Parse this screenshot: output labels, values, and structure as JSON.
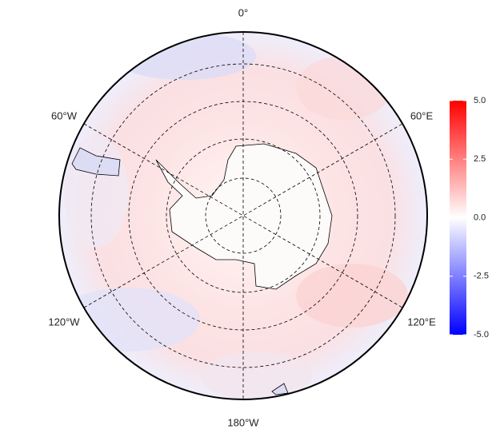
{
  "map": {
    "longitude_labels": [
      "0°",
      "60°E",
      "120°E",
      "180°W",
      "120°W",
      "60°W"
    ],
    "colorbar": {
      "lim": [
        -5,
        5
      ],
      "ticks": [
        {
          "value": 5,
          "label": "5.0"
        },
        {
          "value": 2.5,
          "label": "2.5"
        },
        {
          "value": 0,
          "label": "0.0"
        },
        {
          "value": -2.5,
          "label": "-2.5"
        },
        {
          "value": -5,
          "label": "-5.0"
        }
      ],
      "colors": [
        "#0000ff",
        "#ffffff",
        "#ff0000"
      ]
    }
  }
}
